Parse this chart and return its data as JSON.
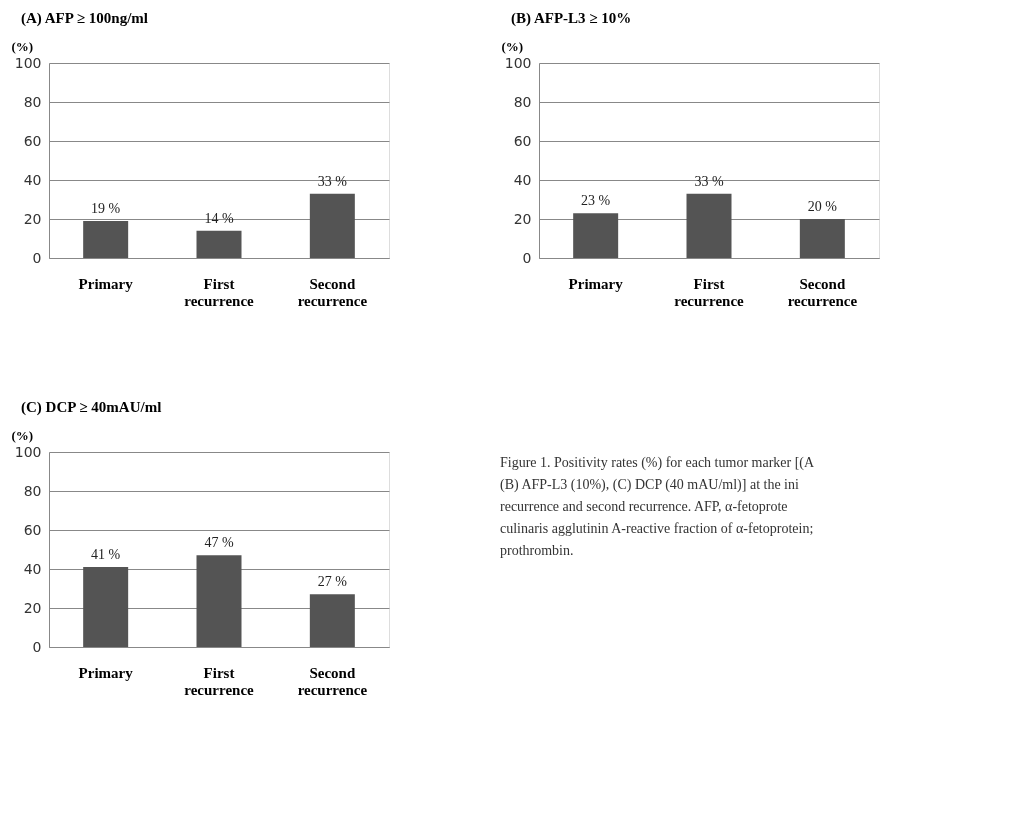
{
  "chart_data": [
    {
      "type": "bar",
      "title": "(A)    AFP ≥ 100ng/ml",
      "ylabel": "(%)",
      "categories": [
        "Primary",
        "First recurrence",
        "Second recurrence"
      ],
      "values": [
        19,
        14,
        33
      ],
      "value_labels": [
        "19 %",
        "14  %",
        "33  %"
      ],
      "color": "#545454",
      "ylim": [
        0,
        100
      ],
      "yticks": [
        0,
        20,
        40,
        60,
        80,
        100
      ],
      "grid": "y"
    },
    {
      "type": "bar",
      "title": "(B)    AFP-L3 ≥ 10%",
      "ylabel": "(%)",
      "categories": [
        "Primary",
        "First recurrence",
        "Second recurrence"
      ],
      "values": [
        23,
        33,
        20
      ],
      "value_labels": [
        "23 %",
        "33 %",
        "20 %"
      ],
      "color": "#545454",
      "ylim": [
        0,
        100
      ],
      "yticks": [
        0,
        20,
        40,
        60,
        80,
        100
      ],
      "grid": "y"
    },
    {
      "type": "bar",
      "title": "(C)    DCP ≥ 40mAU/ml",
      "ylabel": "(%)",
      "categories": [
        "Primary",
        "First recurrence",
        "Second recurrence"
      ],
      "values": [
        41,
        47,
        27
      ],
      "value_labels": [
        "41 %",
        "47 %",
        "27 %"
      ],
      "color": "#545454",
      "ylim": [
        0,
        100
      ],
      "yticks": [
        0,
        20,
        40,
        60,
        80,
        100
      ],
      "grid": "y"
    },
    {
      "type": "other",
      "annotations": [
        "Figure 1. Positivity rates (%) for each tumor marker [(A",
        "(B) AFP-L3 (10%), (C) DCP (40 mAU/ml)] at the ini",
        "recurrence and second recurrence. AFP, α-fetoprote",
        "culinaris agglutinin A-reactive fraction of α-fetoprotein; ",
        "prothrombin."
      ]
    }
  ]
}
